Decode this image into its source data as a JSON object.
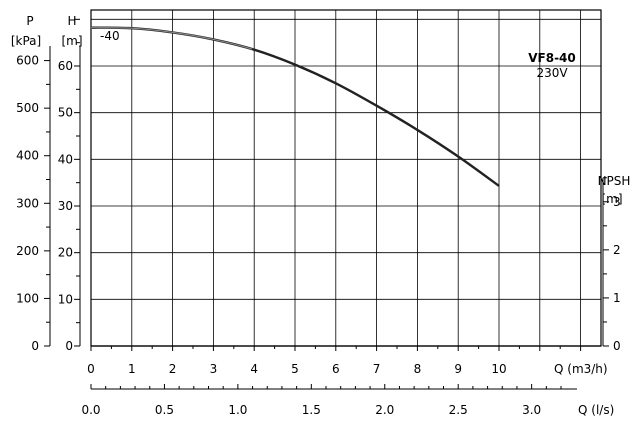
{
  "chart_data": {
    "type": "line",
    "model": "VF8-40",
    "voltage": "230V",
    "curve_tag": "-40",
    "left_axis_1": {
      "label_line1": "P",
      "label_line2": "[kPa]",
      "ticks": [
        0,
        100,
        200,
        300,
        400,
        500,
        600
      ]
    },
    "left_axis_2": {
      "label_line1": "H",
      "label_line2": "[m]",
      "ticks": [
        0,
        10,
        20,
        30,
        40,
        50,
        60
      ],
      "range": [
        0,
        72
      ]
    },
    "right_axis": {
      "label_line1": "NPSH",
      "label_line2": "[m]",
      "ticks": [
        0,
        1,
        2,
        3
      ]
    },
    "x_axis_1": {
      "label": "Q (m3/h)",
      "ticks": [
        0,
        1,
        2,
        3,
        4,
        5,
        6,
        7,
        8,
        9,
        10
      ],
      "range": [
        0,
        12.5
      ]
    },
    "x_axis_2": {
      "label": "Q (l/s)",
      "ticks": [
        "0.0",
        "0.5",
        "1.0",
        "1.5",
        "2.0",
        "2.5",
        "3.0"
      ]
    },
    "series": [
      {
        "x": [
          0,
          1,
          2,
          3,
          4,
          5,
          6,
          7,
          8,
          9,
          10
        ],
        "y": [
          68.2,
          68.1,
          67.2,
          65.7,
          63.5,
          60.3,
          56.3,
          51.5,
          46.3,
          40.6,
          34.3
        ]
      }
    ],
    "grid": true
  }
}
